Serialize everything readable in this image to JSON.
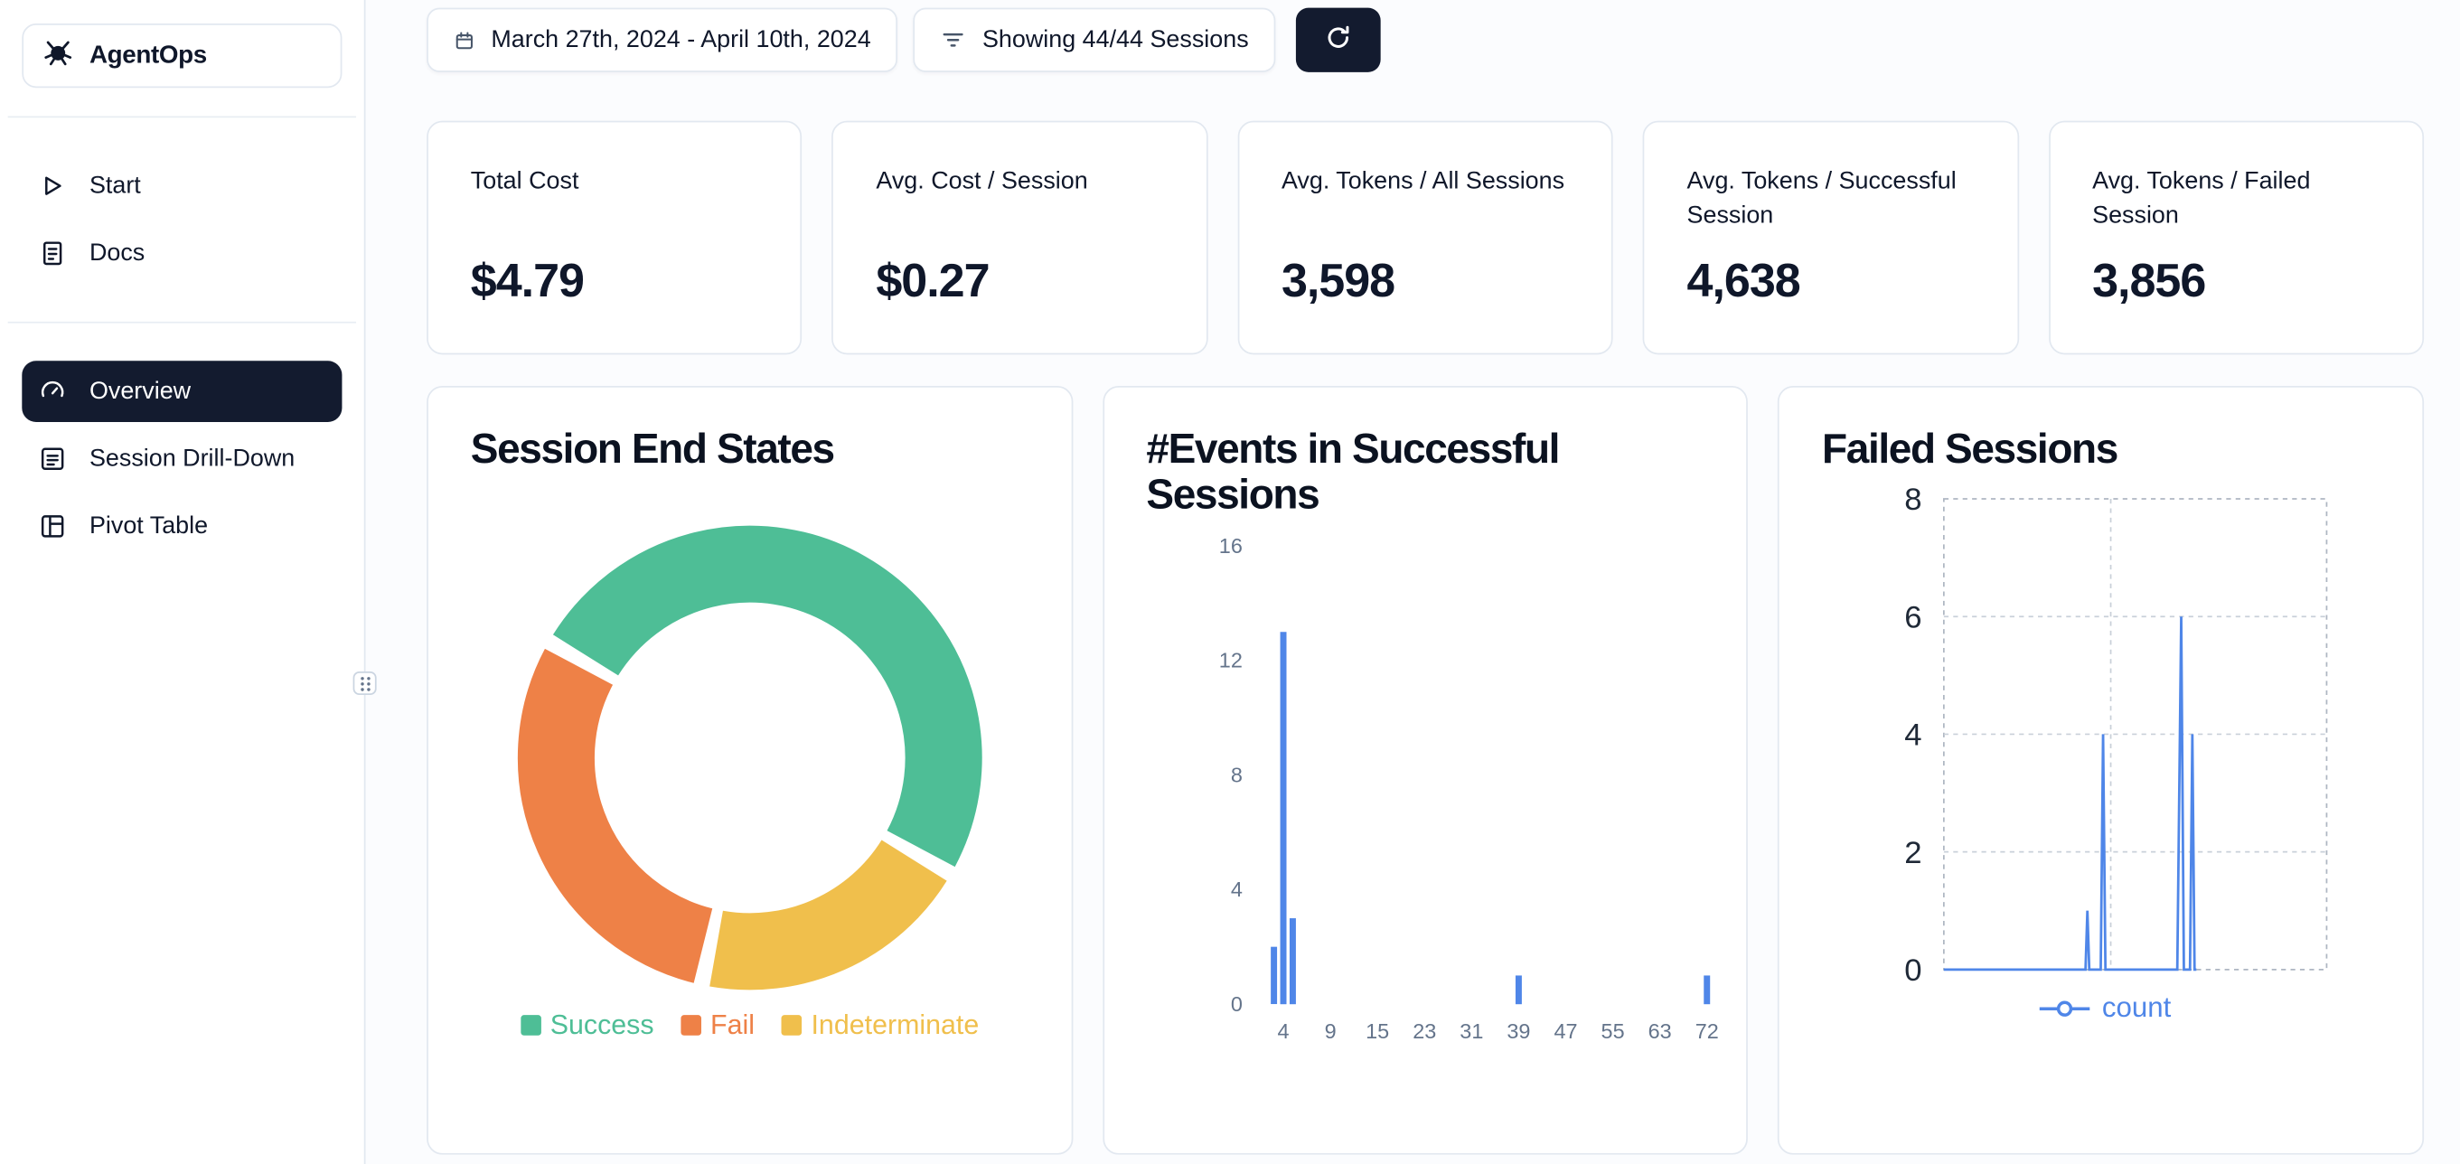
{
  "app": {
    "name": "AgentOps"
  },
  "sidebar": {
    "items_top": [
      {
        "label": "Start",
        "icon": "play-icon"
      },
      {
        "label": "Docs",
        "icon": "document-icon"
      }
    ],
    "items_main": [
      {
        "label": "Overview",
        "icon": "gauge-icon",
        "active": true
      },
      {
        "label": "Session Drill-Down",
        "icon": "session-list-icon",
        "active": false
      },
      {
        "label": "Pivot Table",
        "icon": "pivot-table-icon",
        "active": false
      }
    ]
  },
  "topbar": {
    "date_range": "March 27th, 2024 - April 10th, 2024",
    "sessions_filter": "Showing 44/44 Sessions"
  },
  "stats": [
    {
      "label": "Total Cost",
      "value": "$4.79"
    },
    {
      "label": "Avg. Cost / Session",
      "value": "$0.27"
    },
    {
      "label": "Avg. Tokens / All Sessions",
      "value": "3,598"
    },
    {
      "label": "Avg. Tokens / Successful Session",
      "value": "4,638"
    },
    {
      "label": "Avg. Tokens / Failed Session",
      "value": "3,856"
    }
  ],
  "colors": {
    "accent_dark": "#131b2f",
    "card_border": "#e2e8f0",
    "success": "#4ebe96",
    "fail": "#ee8147",
    "indeterminate": "#f0bf4c",
    "chart_blue": "#4f86e8"
  },
  "chart_data": [
    {
      "type": "pie",
      "title": "Session End States",
      "labels": [
        "Success",
        "Fail",
        "Indeterminate"
      ],
      "values": [
        50,
        30,
        20
      ],
      "values_note": "percent share estimated from arc angles; no numeric labels shown in chart",
      "colors": [
        "#4ebe96",
        "#ee8147",
        "#f0bf4c"
      ],
      "layout": {
        "donut": true,
        "start_angle_deg": 150,
        "direction": "clockwise",
        "draw_order": [
          "Success",
          "Indeterminate",
          "Fail"
        ],
        "segment_gap_deg": 4,
        "legend_position": "bottom"
      }
    },
    {
      "type": "bar",
      "title": "#Events in Successful Sessions",
      "x_ticks": [
        4,
        9,
        15,
        23,
        31,
        39,
        47,
        55,
        63,
        72
      ],
      "y_ticks": [
        0,
        4,
        8,
        12,
        16
      ],
      "ylim": [
        0,
        16
      ],
      "bars": [
        {
          "x": 3,
          "count": 2
        },
        {
          "x": 4,
          "count": 13
        },
        {
          "x": 5,
          "count": 3
        },
        {
          "x": 39,
          "count": 1
        },
        {
          "x": 72,
          "count": 1
        }
      ],
      "bar_color": "#4f86e8",
      "layout": {
        "grid": false,
        "legend": false
      }
    },
    {
      "type": "line",
      "title": "Failed Sessions",
      "y_ticks": [
        0,
        2,
        4,
        6,
        8
      ],
      "ylim": [
        0,
        8
      ],
      "series": [
        {
          "name": "count",
          "color": "#4f86e8",
          "points": [
            [
              0,
              0
            ],
            [
              0.37,
              0
            ],
            [
              0.375,
              1
            ],
            [
              0.38,
              0
            ],
            [
              0.41,
              0
            ],
            [
              0.416,
              4
            ],
            [
              0.422,
              0
            ],
            [
              0.61,
              0
            ],
            [
              0.62,
              6
            ],
            [
              0.627,
              0
            ],
            [
              0.643,
              0
            ],
            [
              0.649,
              4
            ],
            [
              0.655,
              0
            ],
            [
              0.66,
              0
            ]
          ]
        }
      ],
      "x_note": "x axis unlabeled; point x stored as fraction of plot width",
      "layout": {
        "grid": "dashed",
        "legend_position": "bottom",
        "vertical_gridline_fractions": [
          0.436
        ]
      }
    }
  ]
}
